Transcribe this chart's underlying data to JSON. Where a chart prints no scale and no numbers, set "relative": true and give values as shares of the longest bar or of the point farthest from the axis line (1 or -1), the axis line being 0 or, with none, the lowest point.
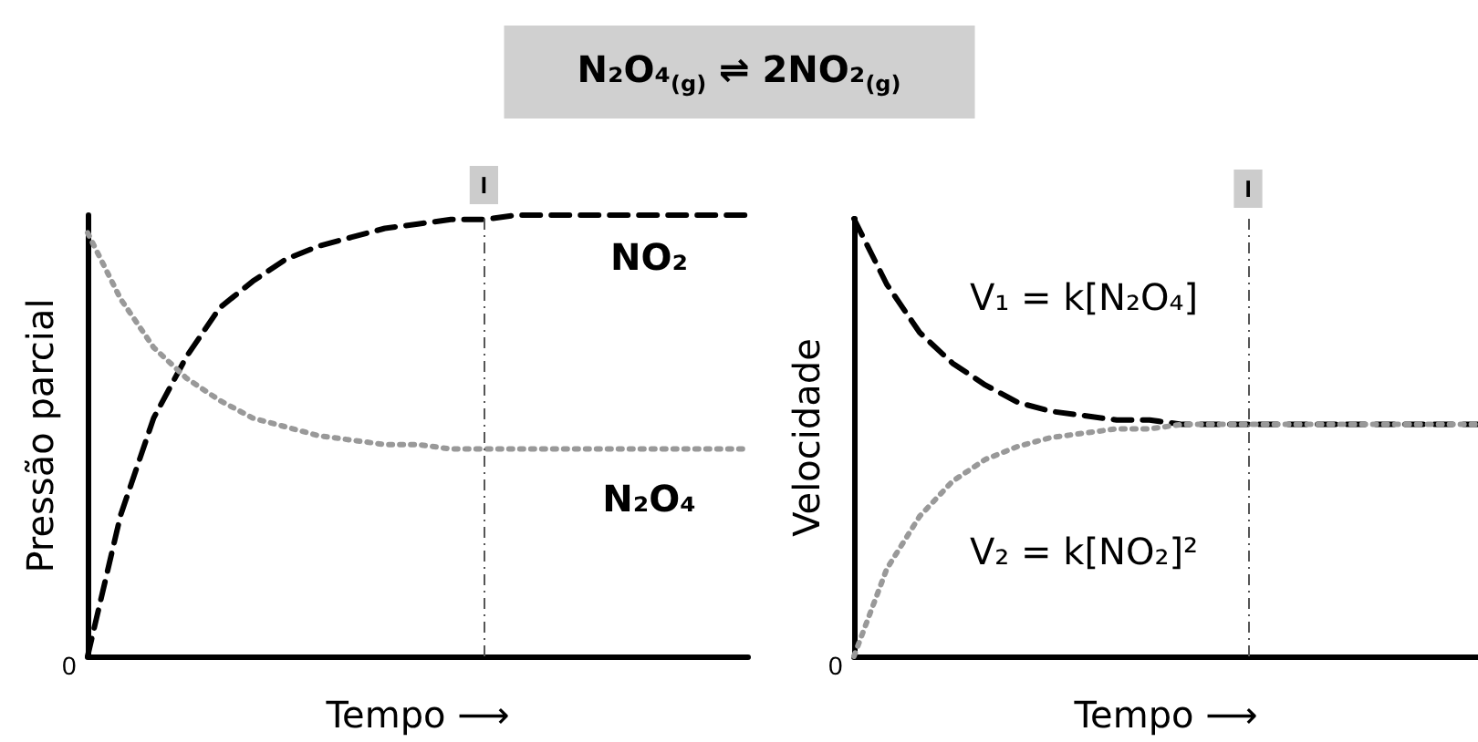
{
  "chart_data": [
    {
      "type": "line",
      "title": "N₂O₄$_{(g)}$ ⇌ 2NO₂$_{(g)}$",
      "xlabel": "Tempo ⟶",
      "ylabel": "Pressão parcial",
      "relative": true,
      "grid": false,
      "legend": false,
      "annotations": [
        "0",
        "I"
      ],
      "categories": [
        null,
        null,
        null,
        null,
        null,
        null,
        null,
        null,
        null,
        null,
        null,
        null,
        null,
        null,
        null,
        null,
        null,
        null,
        null,
        null,
        null
      ],
      "series": [
        {
          "name": "NO₂",
          "color": "#000000",
          "line_style": "dashed",
          "values": [
            0,
            0.32,
            0.54,
            0.68,
            0.79,
            0.85,
            0.9,
            0.93,
            0.95,
            0.97,
            0.98,
            0.99,
            0.99,
            1,
            1,
            1,
            1,
            1,
            1,
            1,
            1
          ]
        },
        {
          "name": "N₂O₄",
          "color": "#999999",
          "line_style": "dotted",
          "values": [
            0.96,
            0.81,
            0.7,
            0.63,
            0.58,
            0.54,
            0.52,
            0.5,
            0.49,
            0.48,
            0.48,
            0.47,
            0.47,
            0.47,
            0.47,
            0.47,
            0.47,
            0.47,
            0.47,
            0.47,
            0.47
          ]
        }
      ]
    },
    {
      "type": "line",
      "xlabel": "Tempo ⟶",
      "ylabel": "Velocidade",
      "relative": true,
      "grid": false,
      "legend": false,
      "annotations": [
        "0",
        "I"
      ],
      "categories": [
        null,
        null,
        null,
        null,
        null,
        null,
        null,
        null,
        null,
        null,
        null,
        null,
        null,
        null,
        null,
        null,
        null,
        null,
        null,
        null
      ],
      "series": [
        {
          "name": "V₁ = k[N₂O₄]",
          "color": "#000000",
          "line_style": "dashed",
          "values": [
            1,
            0.85,
            0.74,
            0.67,
            0.62,
            0.58,
            0.56,
            0.55,
            0.54,
            0.54,
            0.53,
            0.53,
            0.53,
            0.53,
            0.53,
            0.53,
            0.53,
            0.53,
            0.53,
            0.53
          ]
        },
        {
          "name": "V₂ = k[NO₂]²",
          "color": "#999999",
          "line_style": "dotted",
          "values": [
            0,
            0.2,
            0.32,
            0.4,
            0.45,
            0.48,
            0.5,
            0.51,
            0.52,
            0.52,
            0.53,
            0.53,
            0.53,
            0.53,
            0.53,
            0.53,
            0.53,
            0.53,
            0.53,
            0.53
          ]
        }
      ]
    }
  ]
}
